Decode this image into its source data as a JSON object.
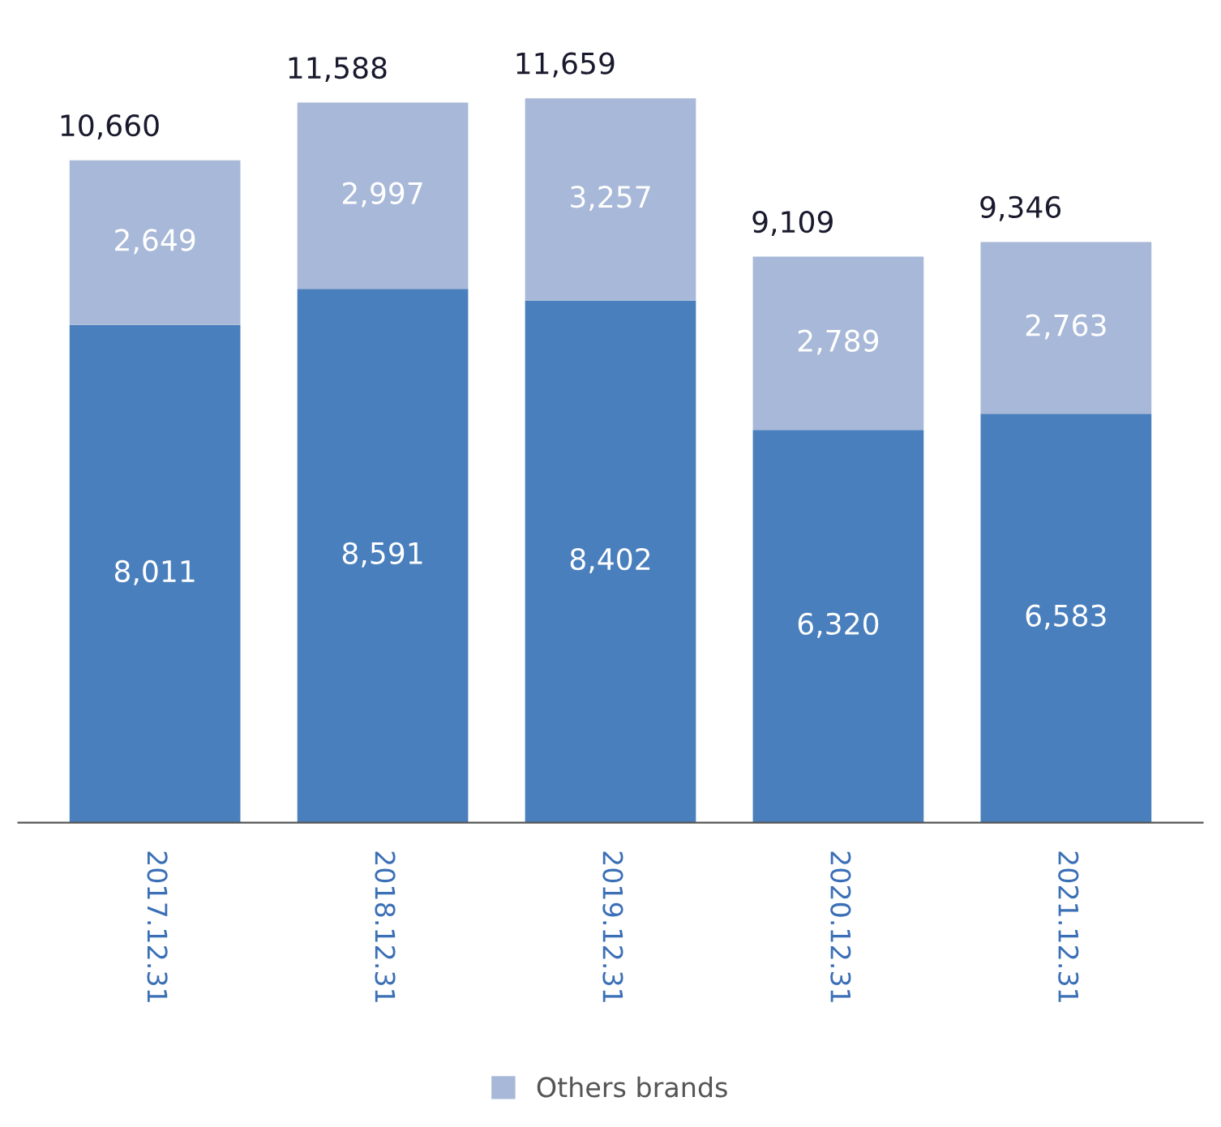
{
  "chart_data": {
    "type": "bar",
    "stacked": true,
    "categories": [
      "2017.12.31",
      "2018.12.31",
      "2019.12.31",
      "2020.12.31",
      "2021.12.31"
    ],
    "series": [
      {
        "color": "#4a7fbd",
        "values": [
          8011,
          8591,
          8402,
          6320,
          6583
        ],
        "value_labels": [
          "8,011",
          "8,591",
          "8,402",
          "6,320",
          "6,583"
        ]
      },
      {
        "name": "Others brands",
        "color": "#a8b8d8",
        "values": [
          2649,
          2997,
          3257,
          2789,
          2763
        ],
        "value_labels": [
          "2,649",
          "2,997",
          "3,257",
          "2,789",
          "2,763"
        ]
      }
    ],
    "totals": [
      "10,660",
      "11,588",
      "11,659",
      "9,109",
      "9,346"
    ],
    "legend": "bottom",
    "grid": false
  }
}
